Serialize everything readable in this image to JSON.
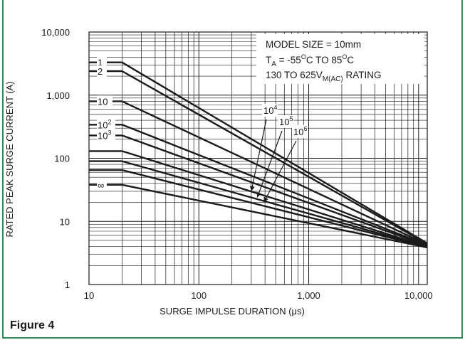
{
  "caption": "Figure 4",
  "chart_data": {
    "type": "line",
    "xlabel": "SURGE IMPULSE DURATION (μs)",
    "ylabel": "RATED PEAK SURGE CURRENT (A)",
    "xscale": "log",
    "yscale": "log",
    "xlim": [
      10,
      12000
    ],
    "ylim": [
      1,
      10000
    ],
    "grid": true,
    "x_ticks": [
      10,
      100,
      1000,
      10000
    ],
    "x_tick_labels": [
      "10",
      "100",
      "1,000",
      "10,000"
    ],
    "y_ticks": [
      1,
      10,
      100,
      1000,
      10000
    ],
    "y_tick_labels": [
      "1",
      "10",
      "100",
      "1,000",
      "10,000"
    ],
    "annotation": {
      "line1": "MODEL SIZE = 10mm",
      "line2_pre": "T",
      "line2_sub": "A",
      "line2_mid1": " = -55",
      "line2_sup1": "O",
      "line2_mid2": "C TO 85",
      "line2_sup2": "O",
      "line2_end": "C",
      "line3_pre": "130 TO 625V",
      "line3_sub": "M(AC)",
      "line3_end": " RATING"
    },
    "series": [
      {
        "label_base": "1",
        "label_exp": "",
        "label_side": "left",
        "points": [
          [
            10,
            3300
          ],
          [
            20,
            3300
          ],
          [
            12000,
            4.5
          ]
        ]
      },
      {
        "label_base": "2",
        "label_exp": "",
        "label_side": "left",
        "points": [
          [
            10,
            2400
          ],
          [
            20,
            2400
          ],
          [
            12000,
            4.4
          ]
        ]
      },
      {
        "label_base": "10",
        "label_exp": "",
        "label_side": "left",
        "points": [
          [
            10,
            800
          ],
          [
            20,
            800
          ],
          [
            12000,
            4.3
          ]
        ]
      },
      {
        "label_base": "10",
        "label_exp": "2",
        "label_side": "left",
        "points": [
          [
            10,
            340
          ],
          [
            20,
            340
          ],
          [
            12000,
            4.2
          ]
        ]
      },
      {
        "label_base": "10",
        "label_exp": "3",
        "label_side": "left",
        "points": [
          [
            10,
            230
          ],
          [
            20,
            230
          ],
          [
            12000,
            4.1
          ]
        ]
      },
      {
        "label_base": "10",
        "label_exp": "4",
        "label_side": "callout",
        "points": [
          [
            10,
            130
          ],
          [
            20,
            130
          ],
          [
            12000,
            4.0
          ]
        ]
      },
      {
        "label_base": "10",
        "label_exp": "5",
        "label_side": "callout",
        "points": [
          [
            10,
            90
          ],
          [
            20,
            90
          ],
          [
            12000,
            3.95
          ]
        ]
      },
      {
        "label_base": "10",
        "label_exp": "6",
        "label_side": "callout",
        "points": [
          [
            10,
            65
          ],
          [
            20,
            65
          ],
          [
            12000,
            3.9
          ]
        ]
      },
      {
        "label_base": "∞",
        "label_exp": "",
        "label_side": "left",
        "points": [
          [
            10,
            38
          ],
          [
            20,
            38
          ],
          [
            12000,
            3.85
          ]
        ]
      }
    ]
  }
}
